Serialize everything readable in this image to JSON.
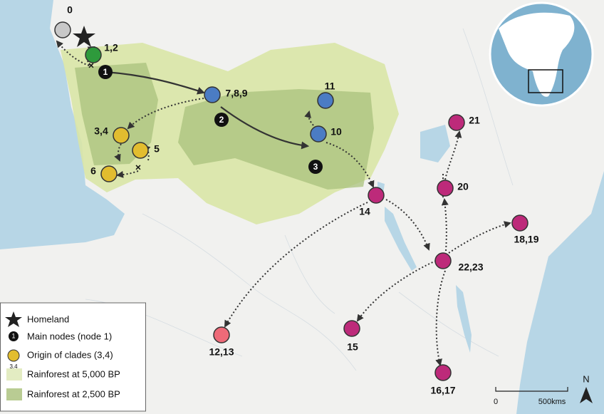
{
  "nodes": [
    {
      "label": "0"
    },
    {
      "label": "1,2"
    },
    {
      "label": "3,4"
    },
    {
      "label": "5"
    },
    {
      "label": "6"
    },
    {
      "label": "7,8,9"
    },
    {
      "label": "10"
    },
    {
      "label": "11"
    },
    {
      "label": "14"
    },
    {
      "label": "20"
    },
    {
      "label": "21"
    },
    {
      "label": "22,23"
    },
    {
      "label": "18,19"
    },
    {
      "label": "15"
    },
    {
      "label": "16,17"
    },
    {
      "label": "12,13"
    }
  ],
  "main_nodes": [
    "1",
    "2",
    "3"
  ],
  "legend": {
    "items": [
      {
        "label": "Homeland"
      },
      {
        "label": "Main nodes (node 1)"
      },
      {
        "label": "Origin of clades (3,4)"
      },
      {
        "label": "Rainforest at 5,000 BP"
      },
      {
        "label": "Rainforest at 2,500 BP"
      }
    ],
    "icon_main": "1",
    "icon_clade": "3,4"
  },
  "scale": {
    "start": "0",
    "end": "500kms"
  },
  "north": "N"
}
